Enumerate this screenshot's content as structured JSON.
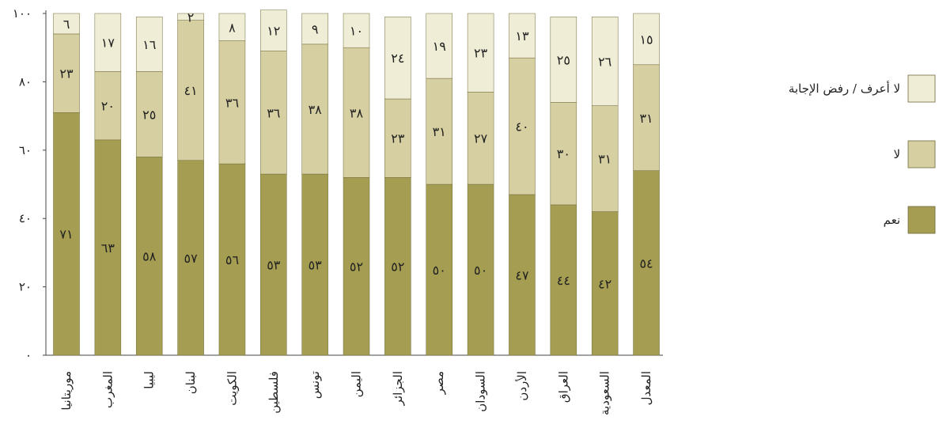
{
  "chart_data": {
    "type": "bar",
    "stacked": true,
    "categories": [
      "موريتانيا",
      "المغرب",
      "ليبيا",
      "لبنان",
      "الكويت",
      "فلسطين",
      "تونس",
      "اليمن",
      "الجزائر",
      "مصر",
      "السودان",
      "الأردن",
      "العراق",
      "السعودية",
      "المعدل"
    ],
    "series": [
      {
        "name": "نعم",
        "color": "#a59d51",
        "values": [
          71,
          63,
          58,
          57,
          56,
          53,
          53,
          52,
          52,
          50,
          50,
          47,
          44,
          42,
          54
        ],
        "labels": [
          "٧١",
          "٦٣",
          "٥٨",
          "٥٧",
          "٥٦",
          "٥٣",
          "٥٣",
          "٥٢",
          "٥٢",
          "٥٠",
          "٥٠",
          "٤٧",
          "٤٤",
          "٤٢",
          "٥٤"
        ]
      },
      {
        "name": "لا",
        "color": "#d6cfa1",
        "values": [
          23,
          20,
          25,
          41,
          36,
          36,
          38,
          38,
          23,
          31,
          27,
          40,
          30,
          31,
          31
        ],
        "labels": [
          "٢٣",
          "٢٠",
          "٢٥",
          "٤١",
          "٣٦",
          "٣٦",
          "٣٨",
          "٣٨",
          "٢٣",
          "٣١",
          "٢٧",
          "٤٠",
          "٣٠",
          "٣١",
          "٣١"
        ]
      },
      {
        "name": "لا أعرف / رفض الإجابة",
        "color": "#f0edd6",
        "values": [
          6,
          17,
          16,
          2,
          8,
          12,
          9,
          10,
          24,
          19,
          23,
          13,
          25,
          26,
          15
        ],
        "labels": [
          "٦",
          "١٧",
          "١٦",
          "٢",
          "٨",
          "١٢",
          "٩",
          "١٠",
          "٢٤",
          "١٩",
          "٢٣",
          "١٣",
          "٢٥",
          "٢٦",
          "١٥"
        ]
      }
    ],
    "ylim": [
      0,
      100
    ],
    "yticks": [
      0,
      20,
      40,
      60,
      80,
      100
    ],
    "ytick_labels": [
      "٠",
      "٢٠",
      "٤٠",
      "٦٠",
      "٨٠",
      "١٠٠"
    ],
    "legend_position": "right",
    "legend_order": [
      2,
      1,
      0
    ],
    "grid": false
  }
}
